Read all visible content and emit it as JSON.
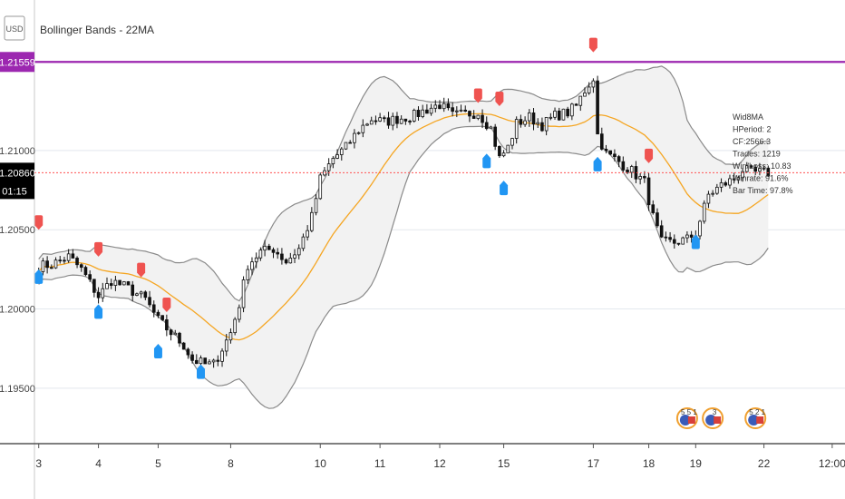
{
  "chart_data": {
    "type": "candlestick",
    "title": "Bollinger Bands - 22MA",
    "currency_label": "USD",
    "colors": {
      "basis": "#f5a623",
      "bands": "#8a8a8a",
      "band_fill": "#f2f2f2",
      "buy_marker": "#2196f3",
      "sell_marker": "#ef5350",
      "resistance_line": "#9c27b0",
      "current_price_line": "#ff5252",
      "candle": "#111111"
    },
    "y_ticks": [
      "1.21000",
      "1.20500",
      "1.20000",
      "1.19500"
    ],
    "y_tick_values": [
      1.21,
      1.205,
      1.2,
      1.195
    ],
    "ylim": [
      1.1915,
      1.2195
    ],
    "x_ticks": [
      "3",
      "4",
      "5",
      "8",
      "10",
      "11",
      "12",
      "15",
      "17",
      "18",
      "19",
      "22",
      "12:00"
    ],
    "x_tick_positions": [
      0,
      14,
      28,
      45,
      66,
      80,
      94,
      109,
      130,
      143,
      154,
      170,
      186
    ],
    "xlim": [
      -1,
      189
    ],
    "bar_count": 172,
    "resistance_level": {
      "value": 1.21559,
      "label": "1.21559"
    },
    "current_price": {
      "value": 1.2086,
      "label": "1.20860",
      "countdown": "01:15"
    },
    "stats": [
      "Wid8MA",
      "HPeriod: 2",
      "CF:2566.3",
      "Trades: 1219",
      "Win/Loss: 10.83",
      "Winrate: 91.6%",
      "Bar Time: 97.8%"
    ],
    "close_points": [
      [
        0,
        1.2027
      ],
      [
        3,
        1.2028
      ],
      [
        7,
        1.2033
      ],
      [
        10,
        1.2025
      ],
      [
        14,
        1.2008
      ],
      [
        17,
        1.2018
      ],
      [
        21,
        1.2013
      ],
      [
        25,
        1.2006
      ],
      [
        28,
        1.1993
      ],
      [
        31,
        1.1985
      ],
      [
        34,
        1.1977
      ],
      [
        36,
        1.1968
      ],
      [
        39,
        1.1965
      ],
      [
        41,
        1.1965
      ],
      [
        43,
        1.1975
      ],
      [
        45,
        1.1985
      ],
      [
        47,
        1.2003
      ],
      [
        49,
        1.2028
      ],
      [
        52,
        1.2036
      ],
      [
        55,
        1.2038
      ],
      [
        58,
        1.203
      ],
      [
        61,
        1.2038
      ],
      [
        64,
        1.2058
      ],
      [
        66,
        1.2082
      ],
      [
        69,
        1.2095
      ],
      [
        72,
        1.2102
      ],
      [
        75,
        1.2113
      ],
      [
        78,
        1.212
      ],
      [
        81,
        1.2118
      ],
      [
        84,
        1.212
      ],
      [
        88,
        1.2122
      ],
      [
        91,
        1.2126
      ],
      [
        94,
        1.2129
      ],
      [
        97,
        1.2122
      ],
      [
        100,
        1.2123
      ],
      [
        103,
        1.2124
      ],
      [
        106,
        1.2114
      ],
      [
        108,
        1.2095
      ],
      [
        110,
        1.2102
      ],
      [
        112,
        1.2117
      ],
      [
        115,
        1.2121
      ],
      [
        118,
        1.2116
      ],
      [
        121,
        1.2122
      ],
      [
        124,
        1.2124
      ],
      [
        126,
        1.2128
      ],
      [
        128,
        1.2138
      ],
      [
        130,
        1.2146
      ],
      [
        131,
        1.211
      ],
      [
        133,
        1.2098
      ],
      [
        136,
        1.2093
      ],
      [
        139,
        1.2087
      ],
      [
        142,
        1.208
      ],
      [
        144,
        1.2058
      ],
      [
        146,
        1.2042
      ],
      [
        149,
        1.2042
      ],
      [
        152,
        1.2044
      ],
      [
        154,
        1.2048
      ],
      [
        157,
        1.2072
      ],
      [
        160,
        1.2078
      ],
      [
        163,
        1.2082
      ],
      [
        165,
        1.2088
      ],
      [
        167,
        1.2086
      ]
    ],
    "buy_signals": [
      [
        0,
        1.2025
      ],
      [
        14,
        1.2003
      ],
      [
        28,
        1.1978
      ],
      [
        38,
        1.1965
      ],
      [
        105,
        1.2098
      ],
      [
        109,
        1.2081
      ],
      [
        131,
        1.2096
      ],
      [
        154,
        1.2047
      ]
    ],
    "sell_signals": [
      [
        0,
        1.205
      ],
      [
        14,
        1.2033
      ],
      [
        24,
        1.202
      ],
      [
        30,
        1.1998
      ],
      [
        103,
        1.213
      ],
      [
        108,
        1.2128
      ],
      [
        130,
        1.2162
      ],
      [
        143,
        1.2092
      ]
    ],
    "flag_icons": [
      {
        "x": 152,
        "label": "5 5 1"
      },
      {
        "x": 158,
        "label": "3"
      },
      {
        "x": 168,
        "label": "5 2 1"
      }
    ]
  }
}
